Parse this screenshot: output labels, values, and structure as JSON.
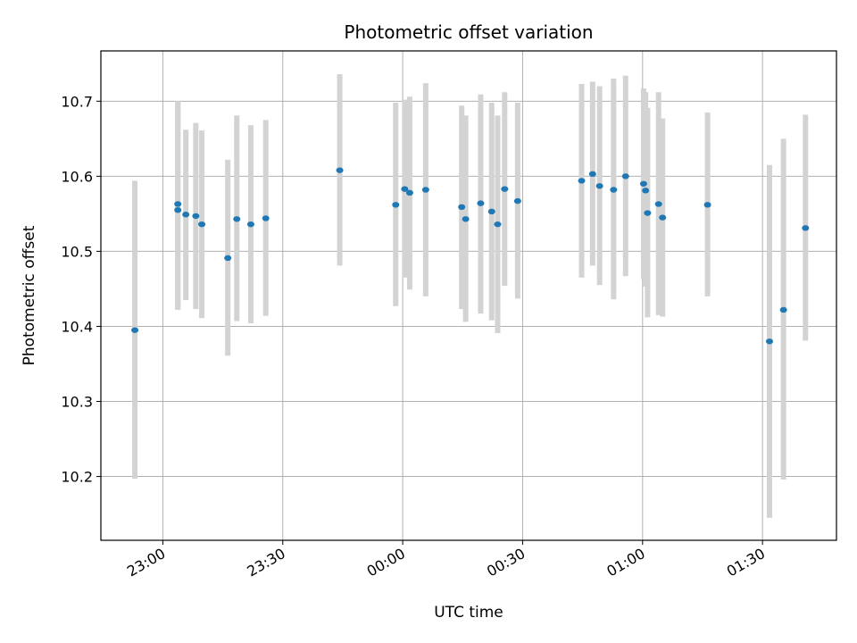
{
  "chart_data": {
    "type": "scatter",
    "title": "Photometric offset variation",
    "xlabel": "UTC time",
    "ylabel": "Photometric offset",
    "xlim": [
      "22:44:30",
      "01:48:30"
    ],
    "ylim": [
      10.115,
      10.767
    ],
    "x_ticks": [
      {
        "time": "23:00",
        "label": "23:00"
      },
      {
        "time": "23:30",
        "label": "23:30"
      },
      {
        "time": "00:00",
        "label": "00:00"
      },
      {
        "time": "00:30",
        "label": "00:30"
      },
      {
        "time": "01:00",
        "label": "01:00"
      },
      {
        "time": "01:30",
        "label": "01:30"
      }
    ],
    "y_ticks": [
      10.2,
      10.3,
      10.4,
      10.5,
      10.6,
      10.7
    ],
    "grid": true,
    "colors": {
      "point": "#1f77b4",
      "errorbar": "#d3d3d3",
      "grid": "#b0b0b0"
    },
    "points": [
      {
        "t": "22:53:00",
        "y": 10.395,
        "lo": 10.197,
        "hi": 10.594
      },
      {
        "t": "23:03:45",
        "y": 10.563,
        "lo": 10.422,
        "hi": 10.7
      },
      {
        "t": "23:03:45",
        "y": 10.555,
        "lo": 10.422,
        "hi": 10.7
      },
      {
        "t": "23:05:45",
        "y": 10.549,
        "lo": 10.435,
        "hi": 10.662
      },
      {
        "t": "23:08:15",
        "y": 10.547,
        "lo": 10.423,
        "hi": 10.671
      },
      {
        "t": "23:09:45",
        "y": 10.536,
        "lo": 10.411,
        "hi": 10.661
      },
      {
        "t": "23:16:15",
        "y": 10.491,
        "lo": 10.361,
        "hi": 10.622
      },
      {
        "t": "23:18:30",
        "y": 10.543,
        "lo": 10.407,
        "hi": 10.681
      },
      {
        "t": "23:22:00",
        "y": 10.536,
        "lo": 10.404,
        "hi": 10.668
      },
      {
        "t": "23:25:45",
        "y": 10.544,
        "lo": 10.414,
        "hi": 10.675
      },
      {
        "t": "23:44:15",
        "y": 10.608,
        "lo": 10.481,
        "hi": 10.736
      },
      {
        "t": "23:58:15",
        "y": 10.562,
        "lo": 10.427,
        "hi": 10.698
      },
      {
        "t": "00:00:30",
        "y": 10.583,
        "lo": 10.465,
        "hi": 10.702
      },
      {
        "t": "00:01:45",
        "y": 10.578,
        "lo": 10.449,
        "hi": 10.706
      },
      {
        "t": "00:05:45",
        "y": 10.582,
        "lo": 10.44,
        "hi": 10.724
      },
      {
        "t": "00:14:45",
        "y": 10.559,
        "lo": 10.423,
        "hi": 10.694
      },
      {
        "t": "00:15:45",
        "y": 10.543,
        "lo": 10.406,
        "hi": 10.681
      },
      {
        "t": "00:19:30",
        "y": 10.564,
        "lo": 10.417,
        "hi": 10.709
      },
      {
        "t": "00:22:15",
        "y": 10.553,
        "lo": 10.408,
        "hi": 10.698
      },
      {
        "t": "00:23:45",
        "y": 10.536,
        "lo": 10.391,
        "hi": 10.681
      },
      {
        "t": "00:25:30",
        "y": 10.583,
        "lo": 10.454,
        "hi": 10.712
      },
      {
        "t": "00:28:45",
        "y": 10.567,
        "lo": 10.437,
        "hi": 10.698
      },
      {
        "t": "00:44:45",
        "y": 10.594,
        "lo": 10.465,
        "hi": 10.723
      },
      {
        "t": "00:47:30",
        "y": 10.603,
        "lo": 10.481,
        "hi": 10.726
      },
      {
        "t": "00:49:15",
        "y": 10.587,
        "lo": 10.455,
        "hi": 10.72
      },
      {
        "t": "00:52:45",
        "y": 10.582,
        "lo": 10.436,
        "hi": 10.73
      },
      {
        "t": "00:55:45",
        "y": 10.6,
        "lo": 10.467,
        "hi": 10.734
      },
      {
        "t": "01:00:15",
        "y": 10.59,
        "lo": 10.463,
        "hi": 10.717
      },
      {
        "t": "01:00:45",
        "y": 10.581,
        "lo": 10.453,
        "hi": 10.712
      },
      {
        "t": "01:01:15",
        "y": 10.551,
        "lo": 10.412,
        "hi": 10.691
      },
      {
        "t": "01:04:00",
        "y": 10.563,
        "lo": 10.415,
        "hi": 10.712
      },
      {
        "t": "01:05:00",
        "y": 10.545,
        "lo": 10.413,
        "hi": 10.677
      },
      {
        "t": "01:16:15",
        "y": 10.562,
        "lo": 10.44,
        "hi": 10.685
      },
      {
        "t": "01:31:45",
        "y": 10.38,
        "lo": 10.145,
        "hi": 10.615
      },
      {
        "t": "01:35:15",
        "y": 10.422,
        "lo": 10.196,
        "hi": 10.65
      },
      {
        "t": "01:40:45",
        "y": 10.531,
        "lo": 10.381,
        "hi": 10.682
      }
    ]
  }
}
